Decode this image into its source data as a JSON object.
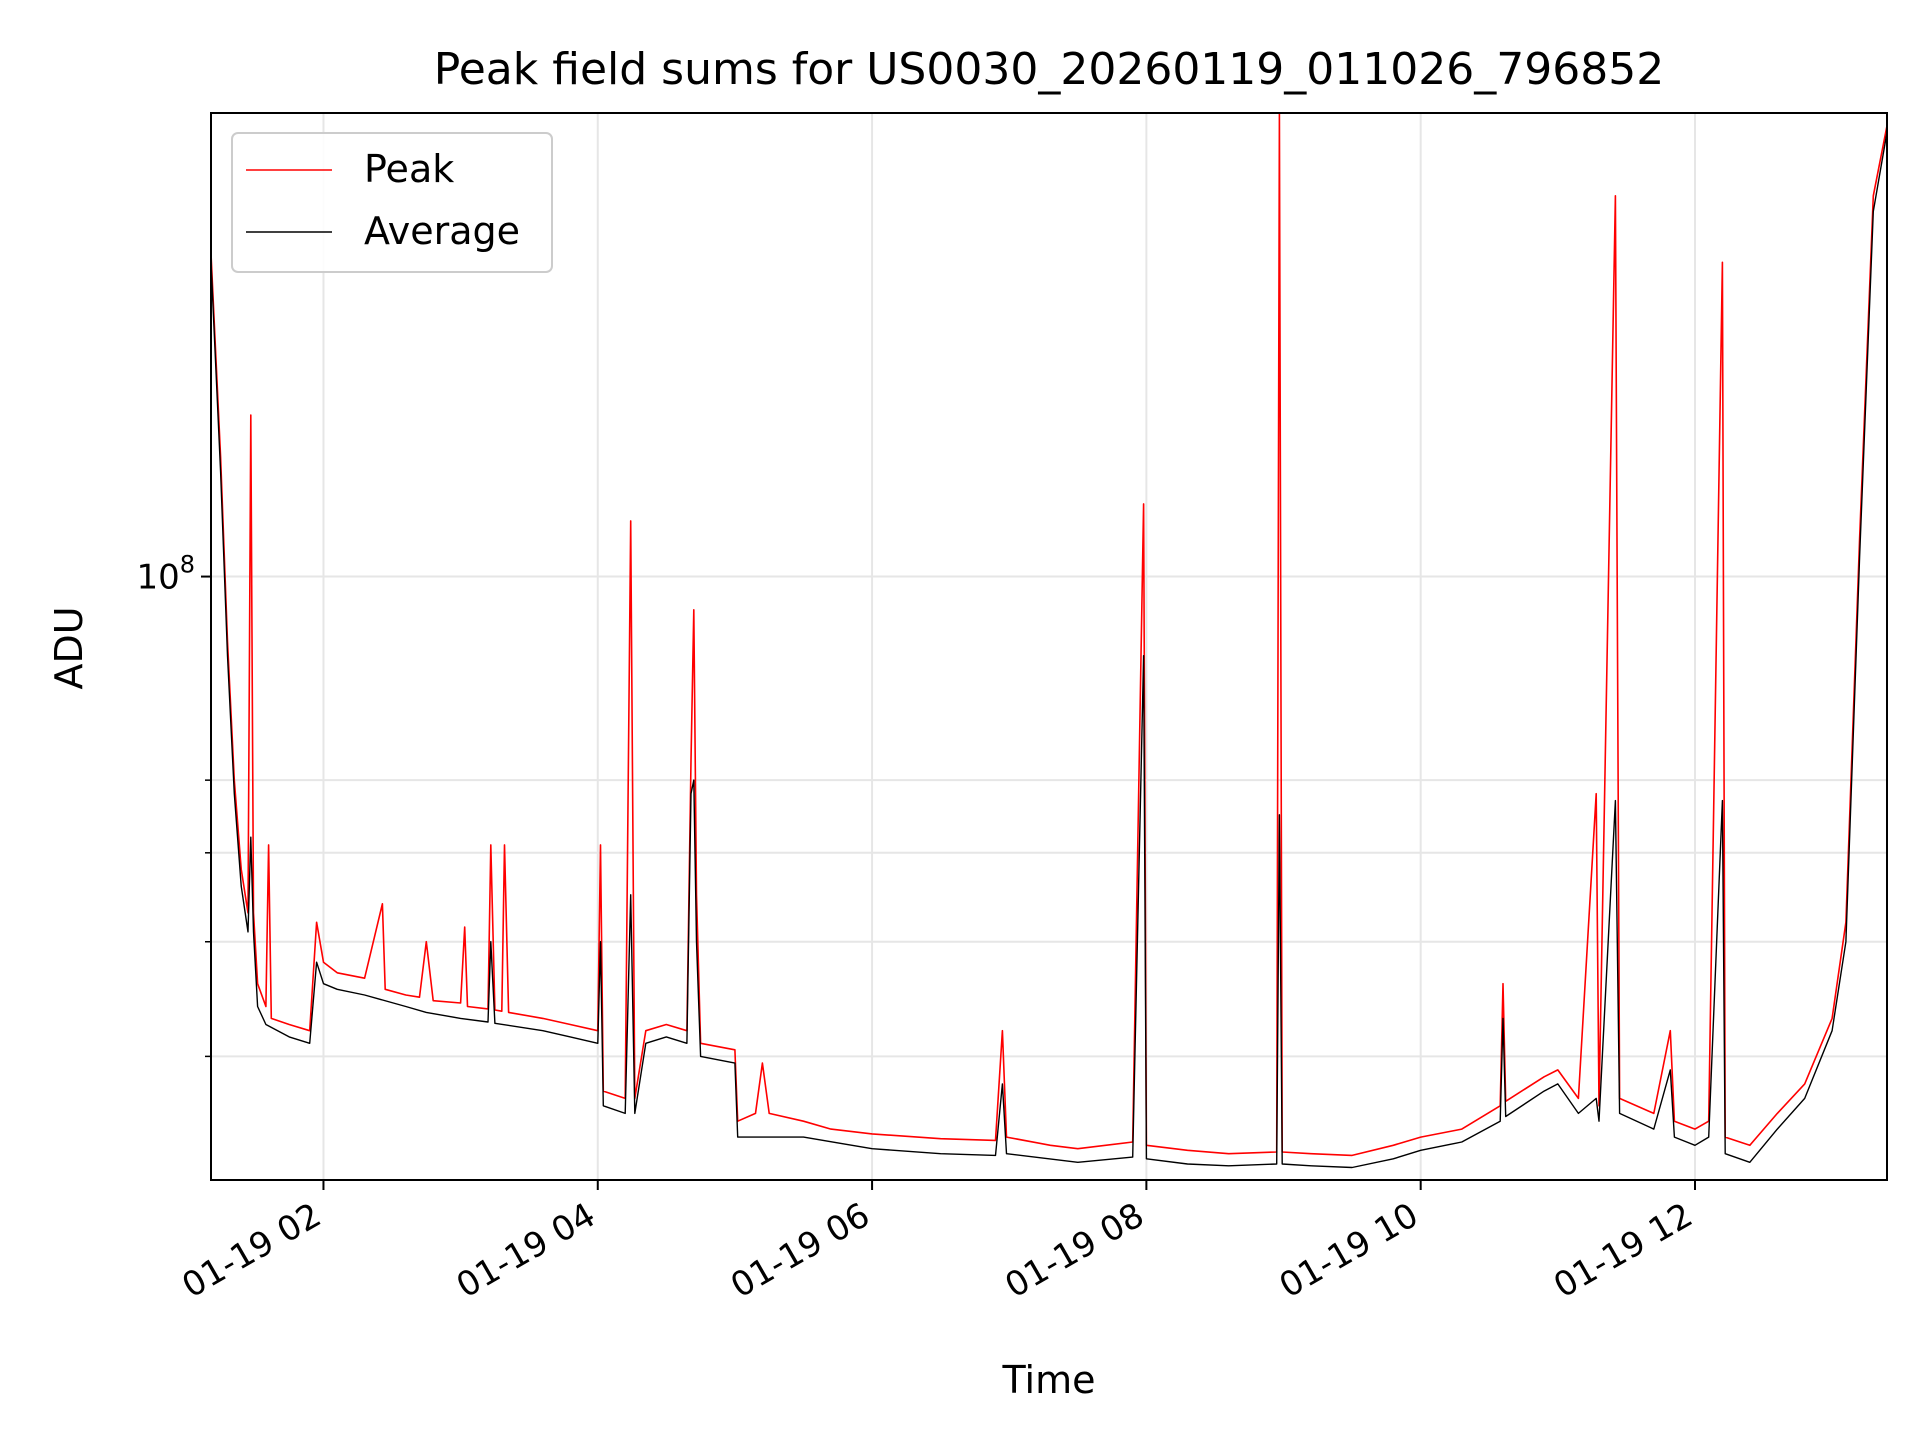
{
  "chart_data": {
    "type": "line",
    "title": "Peak field sums for US0030_20260119_011026_796852",
    "xlabel": "Time",
    "ylabel": "ADU",
    "yscale": "log",
    "ylim": [
      22000000,
      320000000
    ],
    "xlim": [
      1.18,
      13.4
    ],
    "grid": true,
    "legend_position": "upper-left",
    "x_ticks": [
      {
        "value": 2,
        "label": "01-19 02"
      },
      {
        "value": 4,
        "label": "01-19 04"
      },
      {
        "value": 6,
        "label": "01-19 06"
      },
      {
        "value": 8,
        "label": "01-19 08"
      },
      {
        "value": 10,
        "label": "01-19 10"
      },
      {
        "value": 12,
        "label": "01-19 12"
      }
    ],
    "y_major_ticks": [
      {
        "value": 100000000,
        "label_base": "10",
        "label_exp": "8"
      }
    ],
    "y_minor_ticks": [
      30000000,
      40000000,
      50000000,
      60000000
    ],
    "x_units": "hours on 2026-01-19",
    "series": [
      {
        "name": "Peak",
        "color": "#ff0000",
        "points": [
          [
            1.18,
            225000000
          ],
          [
            1.25,
            135000000
          ],
          [
            1.3,
            85000000
          ],
          [
            1.35,
            60000000
          ],
          [
            1.4,
            48000000
          ],
          [
            1.45,
            43000000
          ],
          [
            1.47,
            150000000
          ],
          [
            1.49,
            43000000
          ],
          [
            1.52,
            36000000
          ],
          [
            1.58,
            34000000
          ],
          [
            1.6,
            51000000
          ],
          [
            1.62,
            33000000
          ],
          [
            1.75,
            32500000
          ],
          [
            1.9,
            32000000
          ],
          [
            1.95,
            42000000
          ],
          [
            2.0,
            38000000
          ],
          [
            2.1,
            37000000
          ],
          [
            2.3,
            36500000
          ],
          [
            2.43,
            44000000
          ],
          [
            2.45,
            35500000
          ],
          [
            2.6,
            35000000
          ],
          [
            2.7,
            34800000
          ],
          [
            2.75,
            40000000
          ],
          [
            2.8,
            34500000
          ],
          [
            3.0,
            34300000
          ],
          [
            3.03,
            41500000
          ],
          [
            3.05,
            34000000
          ],
          [
            3.2,
            33800000
          ],
          [
            3.22,
            51000000
          ],
          [
            3.25,
            33700000
          ],
          [
            3.3,
            33600000
          ],
          [
            3.32,
            51000000
          ],
          [
            3.35,
            33500000
          ],
          [
            3.6,
            33000000
          ],
          [
            3.8,
            32500000
          ],
          [
            4.0,
            32000000
          ],
          [
            4.02,
            51000000
          ],
          [
            4.04,
            27500000
          ],
          [
            4.2,
            27000000
          ],
          [
            4.24,
            115000000
          ],
          [
            4.27,
            27000000
          ],
          [
            4.35,
            32000000
          ],
          [
            4.5,
            32500000
          ],
          [
            4.65,
            32000000
          ],
          [
            4.68,
            63000000
          ],
          [
            4.7,
            92000000
          ],
          [
            4.72,
            45000000
          ],
          [
            4.75,
            31000000
          ],
          [
            5.0,
            30500000
          ],
          [
            5.02,
            25500000
          ],
          [
            5.15,
            26000000
          ],
          [
            5.2,
            29500000
          ],
          [
            5.25,
            26000000
          ],
          [
            5.5,
            25500000
          ],
          [
            5.7,
            25000000
          ],
          [
            6.0,
            24700000
          ],
          [
            6.5,
            24400000
          ],
          [
            6.9,
            24300000
          ],
          [
            6.95,
            32000000
          ],
          [
            6.98,
            24500000
          ],
          [
            7.3,
            24000000
          ],
          [
            7.5,
            23800000
          ],
          [
            7.9,
            24200000
          ],
          [
            7.98,
            120000000
          ],
          [
            8.0,
            24000000
          ],
          [
            8.3,
            23700000
          ],
          [
            8.6,
            23500000
          ],
          [
            8.95,
            23600000
          ],
          [
            8.97,
            320000000
          ],
          [
            8.99,
            23600000
          ],
          [
            9.2,
            23500000
          ],
          [
            9.5,
            23400000
          ],
          [
            9.8,
            24000000
          ],
          [
            10.0,
            24500000
          ],
          [
            10.3,
            25000000
          ],
          [
            10.58,
            26500000
          ],
          [
            10.6,
            36000000
          ],
          [
            10.62,
            26800000
          ],
          [
            10.9,
            28500000
          ],
          [
            11.0,
            29000000
          ],
          [
            11.15,
            27000000
          ],
          [
            11.28,
            58000000
          ],
          [
            11.3,
            26500000
          ],
          [
            11.42,
            260000000
          ],
          [
            11.45,
            27000000
          ],
          [
            11.7,
            26000000
          ],
          [
            11.82,
            32000000
          ],
          [
            11.85,
            25500000
          ],
          [
            12.0,
            25000000
          ],
          [
            12.1,
            25500000
          ],
          [
            12.2,
            220000000
          ],
          [
            12.22,
            24500000
          ],
          [
            12.4,
            24000000
          ],
          [
            12.6,
            26000000
          ],
          [
            12.8,
            28000000
          ],
          [
            13.0,
            33000000
          ],
          [
            13.1,
            42000000
          ],
          [
            13.2,
            110000000
          ],
          [
            13.3,
            260000000
          ],
          [
            13.4,
            310000000
          ]
        ]
      },
      {
        "name": "Average",
        "color": "#000000",
        "points": [
          [
            1.18,
            220000000
          ],
          [
            1.25,
            130000000
          ],
          [
            1.3,
            82000000
          ],
          [
            1.35,
            58000000
          ],
          [
            1.4,
            46000000
          ],
          [
            1.45,
            41000000
          ],
          [
            1.47,
            52000000
          ],
          [
            1.49,
            41000000
          ],
          [
            1.52,
            34000000
          ],
          [
            1.58,
            32500000
          ],
          [
            1.75,
            31500000
          ],
          [
            1.9,
            31000000
          ],
          [
            1.95,
            38000000
          ],
          [
            2.0,
            36000000
          ],
          [
            2.1,
            35500000
          ],
          [
            2.3,
            35000000
          ],
          [
            2.6,
            34000000
          ],
          [
            2.75,
            33500000
          ],
          [
            3.0,
            33000000
          ],
          [
            3.2,
            32700000
          ],
          [
            3.22,
            40000000
          ],
          [
            3.25,
            32600000
          ],
          [
            3.6,
            32000000
          ],
          [
            3.8,
            31500000
          ],
          [
            4.0,
            31000000
          ],
          [
            4.02,
            40000000
          ],
          [
            4.04,
            26500000
          ],
          [
            4.2,
            26000000
          ],
          [
            4.24,
            45000000
          ],
          [
            4.27,
            26000000
          ],
          [
            4.35,
            31000000
          ],
          [
            4.5,
            31500000
          ],
          [
            4.65,
            31000000
          ],
          [
            4.68,
            58000000
          ],
          [
            4.7,
            60000000
          ],
          [
            4.72,
            40000000
          ],
          [
            4.75,
            30000000
          ],
          [
            5.0,
            29500000
          ],
          [
            5.02,
            24500000
          ],
          [
            5.5,
            24500000
          ],
          [
            6.0,
            23800000
          ],
          [
            6.5,
            23500000
          ],
          [
            6.9,
            23400000
          ],
          [
            6.95,
            28000000
          ],
          [
            6.98,
            23500000
          ],
          [
            7.5,
            23000000
          ],
          [
            7.9,
            23300000
          ],
          [
            7.98,
            82000000
          ],
          [
            8.0,
            23200000
          ],
          [
            8.3,
            22900000
          ],
          [
            8.6,
            22800000
          ],
          [
            8.95,
            22900000
          ],
          [
            8.97,
            55000000
          ],
          [
            8.99,
            22900000
          ],
          [
            9.2,
            22800000
          ],
          [
            9.5,
            22700000
          ],
          [
            9.8,
            23200000
          ],
          [
            10.0,
            23700000
          ],
          [
            10.3,
            24200000
          ],
          [
            10.58,
            25500000
          ],
          [
            10.6,
            33000000
          ],
          [
            10.62,
            25800000
          ],
          [
            10.9,
            27500000
          ],
          [
            11.0,
            28000000
          ],
          [
            11.15,
            26000000
          ],
          [
            11.28,
            27000000
          ],
          [
            11.3,
            25500000
          ],
          [
            11.42,
            57000000
          ],
          [
            11.45,
            26000000
          ],
          [
            11.7,
            25000000
          ],
          [
            11.82,
            29000000
          ],
          [
            11.85,
            24500000
          ],
          [
            12.0,
            24000000
          ],
          [
            12.1,
            24500000
          ],
          [
            12.2,
            57000000
          ],
          [
            12.22,
            23500000
          ],
          [
            12.4,
            23000000
          ],
          [
            12.6,
            25000000
          ],
          [
            12.8,
            27000000
          ],
          [
            13.0,
            32000000
          ],
          [
            13.1,
            40000000
          ],
          [
            13.2,
            105000000
          ],
          [
            13.3,
            250000000
          ],
          [
            13.4,
            305000000
          ]
        ]
      }
    ]
  }
}
